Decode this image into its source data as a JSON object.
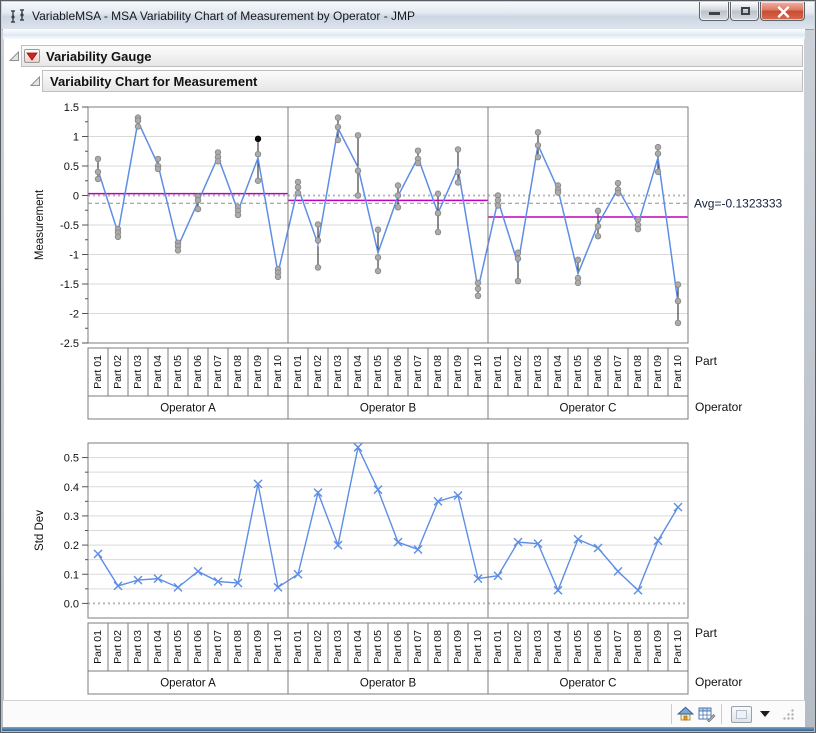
{
  "window": {
    "title": "VariableMSA - MSA Variability Chart of Measurement by Operator - JMP",
    "buttons": {
      "minimize": "minimize",
      "restore": "restore",
      "close": "close"
    }
  },
  "outline": {
    "section1": "Variability Gauge",
    "section2": "Variability Chart for Measurement"
  },
  "colors": {
    "line_blue": "#5d8ee6",
    "mean_magenta": "#c000c0",
    "point_gray": "#ababab",
    "point_stroke": "#858585",
    "selected_black": "#0a0a0a",
    "grid": "#d9d9d9",
    "frame": "#7d7d7d",
    "zero_dotted": "#b8b8b8",
    "avg_dashed": "#8f8f8f",
    "range_bar": "#1a1a1a",
    "text": "#111111"
  },
  "chart_data": [
    {
      "type": "line",
      "title": "Variability Chart for Measurement",
      "ylabel": "Measurement",
      "ylim": [
        -2.5,
        1.5
      ],
      "yticks": [
        "1.5",
        "1",
        "0.5",
        "0",
        "-0.5",
        "-1",
        "-1.5",
        "-2",
        "-2.5"
      ],
      "ytick_values": [
        1.5,
        1,
        0.5,
        0,
        -0.5,
        -1,
        -1.5,
        -2,
        -2.5
      ],
      "categories": [
        "Part 01",
        "Part 02",
        "Part 03",
        "Part 04",
        "Part 05",
        "Part 06",
        "Part 07",
        "Part 08",
        "Part 09",
        "Part 10"
      ],
      "groups": [
        "Operator A",
        "Operator B",
        "Operator C"
      ],
      "axis_name_parts": "Part",
      "axis_name_groups": "Operator",
      "avg_line": {
        "label": "Avg=-0.1323333",
        "value": -0.1323333
      },
      "zero_line": 0,
      "legend_position": "none",
      "grid": true,
      "series": [
        {
          "name": "Operator A",
          "measurements": [
            [
              0.62,
              0.4,
              0.28
            ],
            [
              -0.57,
              -0.63,
              -0.7
            ],
            [
              1.32,
              1.27,
              1.17
            ],
            [
              0.62,
              0.5,
              0.45
            ],
            [
              -0.8,
              -0.86,
              -0.93
            ],
            [
              -0.02,
              -0.08,
              -0.23
            ],
            [
              0.73,
              0.65,
              0.58
            ],
            [
              -0.2,
              -0.26,
              -0.33
            ],
            [
              0.96,
              0.7,
              0.25
            ],
            [
              -1.25,
              -1.31,
              -1.38
            ]
          ]
        },
        {
          "name": "Operator B",
          "measurements": [
            [
              0.23,
              0.14,
              0.04
            ],
            [
              -0.49,
              -0.76,
              -1.22
            ],
            [
              1.32,
              1.16,
              0.94
            ],
            [
              1.02,
              0.42,
              0.0
            ],
            [
              -0.58,
              -1.05,
              -1.28
            ],
            [
              0.17,
              0.0,
              -0.2
            ],
            [
              0.76,
              0.62,
              0.55
            ],
            [
              0.03,
              -0.3,
              -0.62
            ],
            [
              0.78,
              0.4,
              0.22
            ],
            [
              -1.48,
              -1.58,
              -1.7
            ]
          ]
        },
        {
          "name": "Operator C",
          "measurements": [
            [
              0.0,
              -0.08,
              -0.17
            ],
            [
              -0.97,
              -1.07,
              -1.45
            ],
            [
              1.07,
              0.85,
              0.65
            ],
            [
              0.17,
              0.1,
              0.05
            ],
            [
              -1.09,
              -1.4,
              -1.48
            ],
            [
              -0.26,
              -0.52,
              -0.69
            ],
            [
              0.21,
              0.1,
              0.04
            ],
            [
              -0.41,
              -0.5,
              -0.57
            ],
            [
              0.82,
              0.71,
              0.4
            ],
            [
              -1.51,
              -1.79,
              -2.16
            ]
          ]
        }
      ],
      "selected_point": {
        "group": 0,
        "part": 8,
        "index": 0
      }
    },
    {
      "type": "line",
      "title": "Std Dev Chart",
      "ylabel": "Std Dev",
      "ylim": [
        -0.05,
        0.55
      ],
      "yticks": [
        "0.5",
        "0.4",
        "0.3",
        "0.2",
        "0.1",
        "0.0"
      ],
      "ytick_values": [
        0.5,
        0.4,
        0.3,
        0.2,
        0.1,
        0.0
      ],
      "categories": [
        "Part 01",
        "Part 02",
        "Part 03",
        "Part 04",
        "Part 05",
        "Part 06",
        "Part 07",
        "Part 08",
        "Part 09",
        "Part 10"
      ],
      "groups": [
        "Operator A",
        "Operator B",
        "Operator C"
      ],
      "axis_name_parts": "Part",
      "axis_name_groups": "Operator",
      "zero_line": 0,
      "legend_position": "none",
      "grid": true,
      "series": [
        {
          "name": "Operator A",
          "values": [
            0.17,
            0.06,
            0.08,
            0.085,
            0.055,
            0.11,
            0.075,
            0.07,
            0.41,
            0.055
          ]
        },
        {
          "name": "Operator B",
          "values": [
            0.1,
            0.38,
            0.2,
            0.535,
            0.39,
            0.21,
            0.185,
            0.35,
            0.37,
            0.085
          ]
        },
        {
          "name": "Operator C",
          "values": [
            0.095,
            0.21,
            0.205,
            0.045,
            0.22,
            0.19,
            0.11,
            0.045,
            0.215,
            0.33
          ]
        }
      ]
    }
  ],
  "status_bar": {
    "icons": [
      "home-icon",
      "table-edit-icon",
      "panel-square-button",
      "dropdown-arrow-icon",
      "resize-grip"
    ]
  }
}
